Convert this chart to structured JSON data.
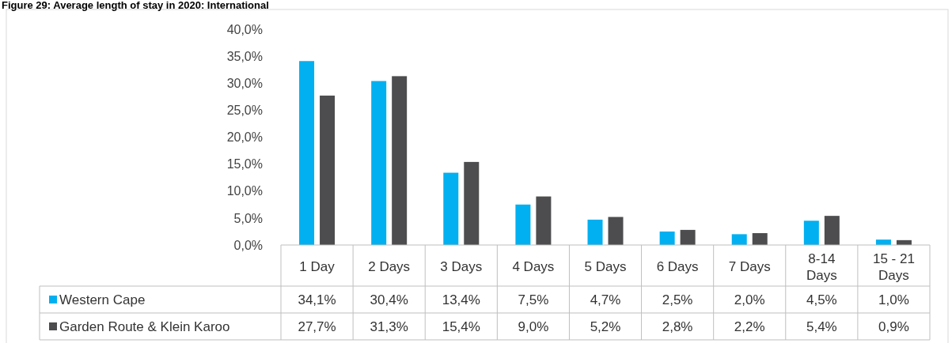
{
  "chart_data": {
    "type": "bar",
    "title": "Figure 29: Average length of stay in 2020: International",
    "categories": [
      "1 Day",
      "2 Days",
      "3 Days",
      "4 Days",
      "5 Days",
      "6 Days",
      "7 Days",
      "8-14 Days",
      "15 - 21 Days"
    ],
    "series": [
      {
        "name": "Western Cape",
        "color": "#00b0f0",
        "values": [
          34.1,
          30.4,
          13.4,
          7.5,
          4.7,
          2.5,
          2.0,
          4.5,
          1.0
        ],
        "value_labels": [
          "34,1%",
          "30,4%",
          "13,4%",
          "7,5%",
          "4,7%",
          "2,5%",
          "2,0%",
          "4,5%",
          "1,0%"
        ]
      },
      {
        "name": "Garden Route & Klein Karoo",
        "color": "#4d4d4f",
        "values": [
          27.7,
          31.3,
          15.4,
          9.0,
          5.2,
          2.8,
          2.2,
          5.4,
          0.9
        ],
        "value_labels": [
          "27,7%",
          "31,3%",
          "15,4%",
          "9,0%",
          "5,2%",
          "2,8%",
          "2,2%",
          "5,4%",
          "0,9%"
        ]
      }
    ],
    "ylim": [
      0,
      40
    ],
    "yticks": [
      {
        "value": 0,
        "label": "0,0%"
      },
      {
        "value": 5,
        "label": "5,0%"
      },
      {
        "value": 10,
        "label": "10,0%"
      },
      {
        "value": 15,
        "label": "15,0%"
      },
      {
        "value": 20,
        "label": "20,0%"
      },
      {
        "value": 25,
        "label": "25,0%"
      },
      {
        "value": 30,
        "label": "30,0%"
      },
      {
        "value": 35,
        "label": "35,0%"
      },
      {
        "value": 40,
        "label": "40,0%"
      }
    ],
    "grid": false,
    "legend": "bottom left"
  }
}
